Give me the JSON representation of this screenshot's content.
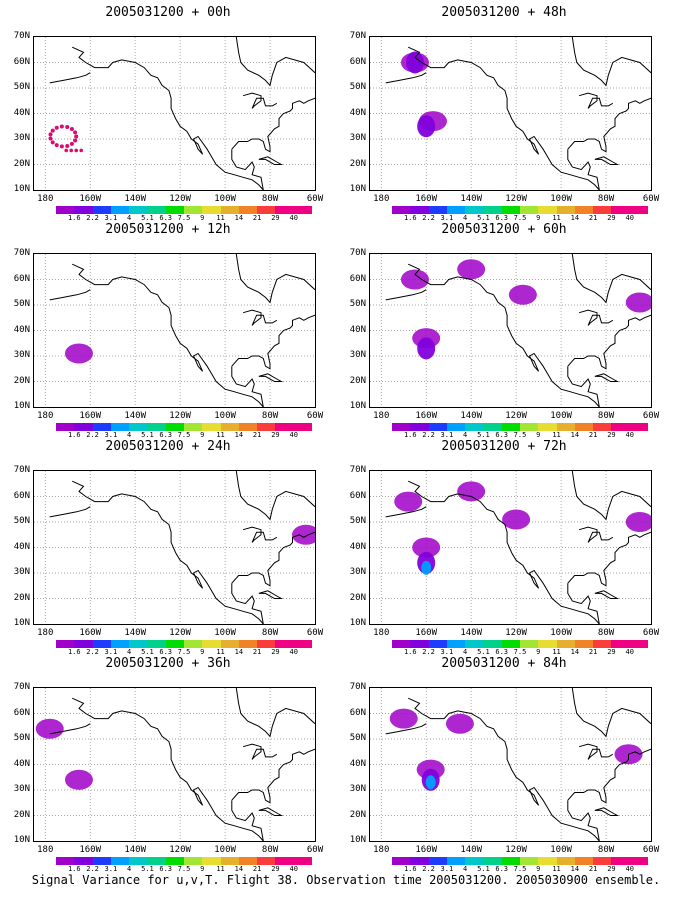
{
  "caption": "Signal Variance for u,v,T. Flight 38. Observation time 2005031200. 2005030900 ensemble.",
  "lat_labels": [
    "70N",
    "60N",
    "50N",
    "40N",
    "30N",
    "20N",
    "10N"
  ],
  "lon_labels": [
    "180",
    "160W",
    "140W",
    "120W",
    "100W",
    "80W",
    "60W"
  ],
  "colorbar": {
    "labels": [
      "1.6",
      "2.2",
      "3.1",
      "4",
      "5.1",
      "6.3",
      "7.5",
      "9",
      "11",
      "14",
      "21",
      "29",
      "40"
    ],
    "colors": [
      "#a000c8",
      "#8200dc",
      "#1e3cff",
      "#00a0ff",
      "#00c8c8",
      "#00d28c",
      "#00dc00",
      "#a0e632",
      "#e6dc32",
      "#e6af2d",
      "#f08228",
      "#fa3c3c",
      "#f00082"
    ]
  },
  "panels": [
    {
      "title": "2005031200 + 00h"
    },
    {
      "title": "2005031200 + 48h"
    },
    {
      "title": "2005031200 + 12h"
    },
    {
      "title": "2005031200 + 60h"
    },
    {
      "title": "2005031200 + 24h"
    },
    {
      "title": "2005031200 + 72h"
    },
    {
      "title": "2005031200 + 36h"
    },
    {
      "title": "2005031200 + 84h"
    }
  ],
  "map_extent": {
    "lon_min": -185,
    "lon_max": -60,
    "lat_min": 10,
    "lat_max": 70
  },
  "signal_features": {
    "00h": [
      {
        "type": "dots",
        "color": "#dc0a6e",
        "shape": "loop",
        "lon": -172,
        "lat": 31
      }
    ],
    "48h": [
      {
        "lon": -165,
        "lat": 60,
        "level": 1
      },
      {
        "lon": -165,
        "lat": 60,
        "level": 2
      },
      {
        "lon": -157,
        "lat": 37,
        "level": 1
      },
      {
        "lon": -160,
        "lat": 35,
        "level": 2
      }
    ],
    "12h": [
      {
        "lon": -165,
        "lat": 31,
        "level": 1
      }
    ],
    "60h": [
      {
        "lon": -165,
        "lat": 60,
        "level": 1
      },
      {
        "lon": -140,
        "lat": 64,
        "level": 1
      },
      {
        "lon": -160,
        "lat": 37,
        "level": 1
      },
      {
        "lon": -160,
        "lat": 33,
        "level": 2
      },
      {
        "lon": -117,
        "lat": 54,
        "level": 1
      },
      {
        "lon": -65,
        "lat": 51,
        "level": 1
      }
    ],
    "24h": [
      {
        "lon": -64,
        "lat": 45,
        "level": 1
      }
    ],
    "72h": [
      {
        "lon": -168,
        "lat": 58,
        "level": 1
      },
      {
        "lon": -140,
        "lat": 62,
        "level": 1
      },
      {
        "lon": -160,
        "lat": 40,
        "level": 1
      },
      {
        "lon": -160,
        "lat": 34,
        "level": 2
      },
      {
        "lon": -160,
        "lat": 32,
        "level": 4
      },
      {
        "lon": -120,
        "lat": 51,
        "level": 1
      },
      {
        "lon": -65,
        "lat": 50,
        "level": 1
      }
    ],
    "36h": [
      {
        "lon": -178,
        "lat": 54,
        "level": 1
      },
      {
        "lon": -165,
        "lat": 34,
        "level": 1
      }
    ],
    "84h": [
      {
        "lon": -170,
        "lat": 58,
        "level": 1
      },
      {
        "lon": -145,
        "lat": 56,
        "level": 1
      },
      {
        "lon": -158,
        "lat": 38,
        "level": 1
      },
      {
        "lon": -158,
        "lat": 34,
        "level": 2
      },
      {
        "lon": -158,
        "lat": 33,
        "level": 4
      },
      {
        "lon": -70,
        "lat": 44,
        "level": 1
      }
    ]
  }
}
